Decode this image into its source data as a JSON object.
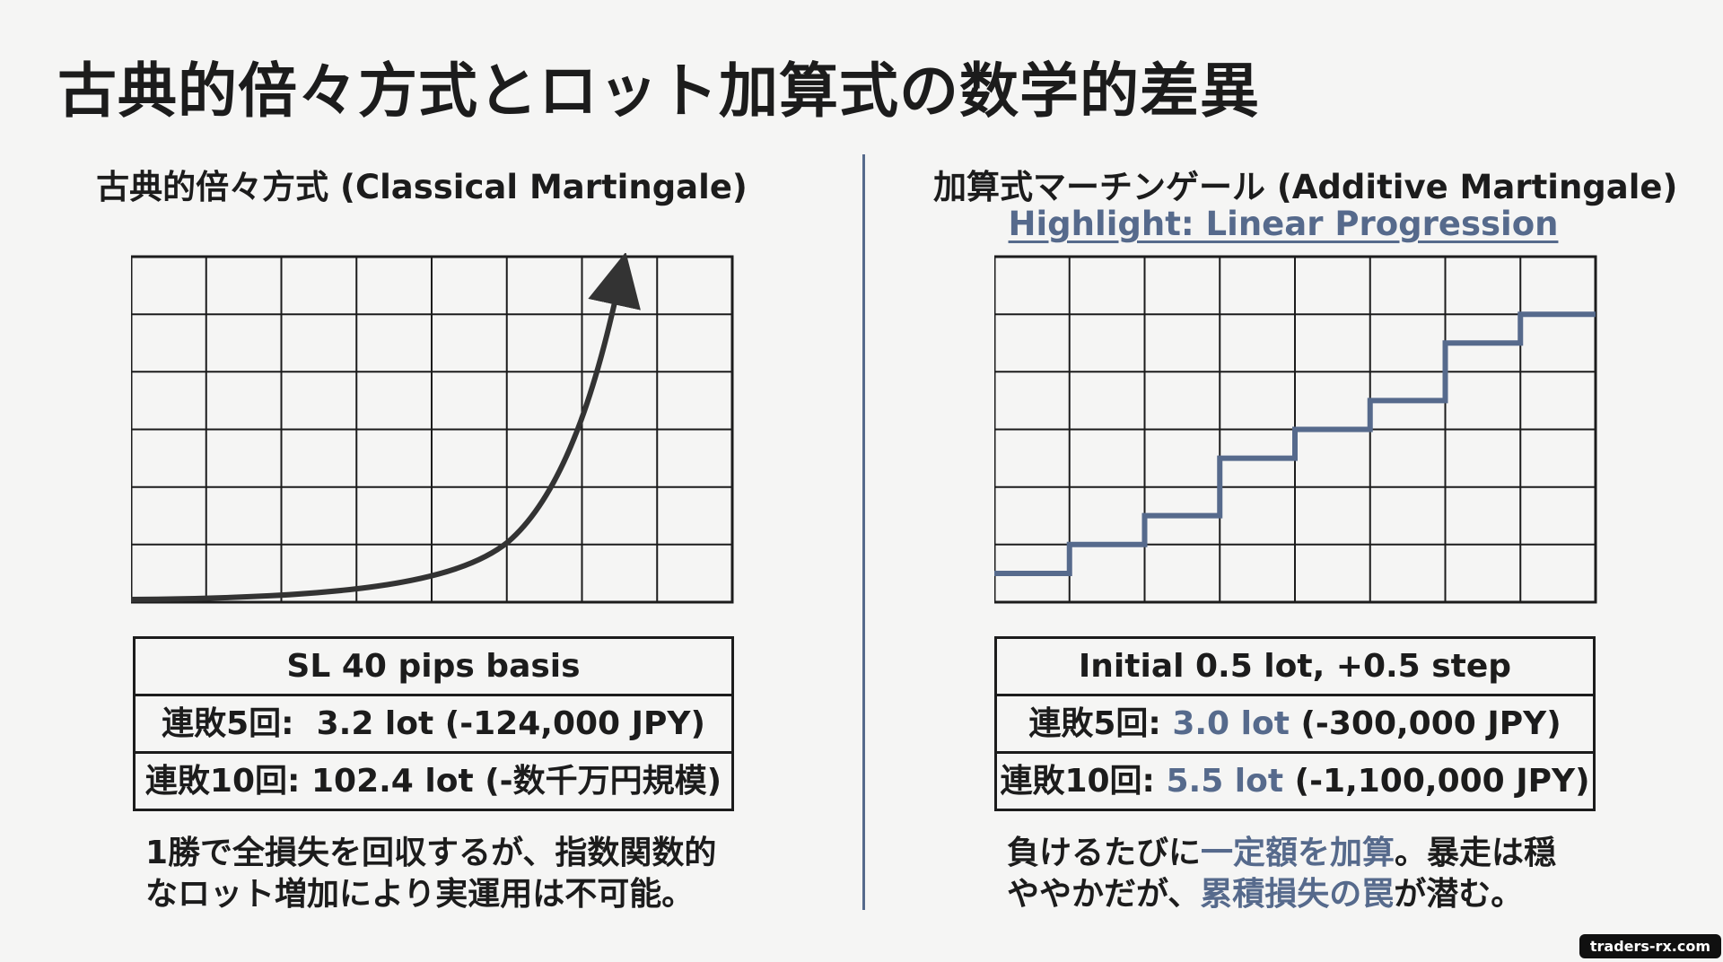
{
  "title": "古典的倍々方式とロット加算式の数学的差異",
  "left": {
    "heading": "古典的倍々方式 (Classical Martingale)",
    "table": {
      "header": "SL 40 pips basis",
      "row5": {
        "label": "連敗5回:",
        "lot": "3.2 lot",
        "detail": "(-124,000 JPY)"
      },
      "row10": {
        "label": "連敗10回:",
        "lot": "102.4 lot",
        "detail": "(-数千万円規模)"
      }
    },
    "caption": {
      "line1": "1勝で全損失を回収するが、指数関数的",
      "line2": "なロット増加により実運用は不可能。"
    }
  },
  "right": {
    "heading": "加算式マーチンゲール (Additive Martingale)",
    "highlight": "Highlight: Linear Progression",
    "table": {
      "header": "Initial 0.5 lot, +0.5 step",
      "row5": {
        "label": "連敗5回:",
        "lot": "3.0 lot",
        "detail": "(-300,000 JPY)"
      },
      "row10": {
        "label": "連敗10回:",
        "lot": "5.5 lot",
        "detail": "(-1,100,000 JPY)"
      }
    },
    "caption": {
      "line1_a": "負けるたびに",
      "line1_b": "一定額を加算",
      "line1_c": "。暴走は穏",
      "line2_a": "ややかだが、",
      "line2_b": "累積損失の罠",
      "line2_c": "が潜む。"
    }
  },
  "watermark": "traders-rx.com",
  "colors": {
    "accent": "#566a8c",
    "ink": "#1c1c1c",
    "curve": "#333333"
  }
}
